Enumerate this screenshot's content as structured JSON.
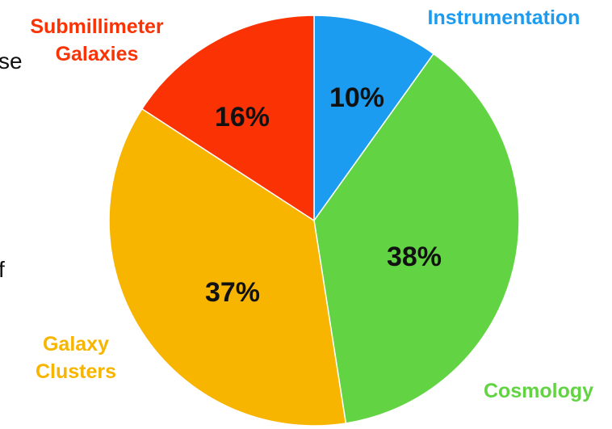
{
  "chart_data": {
    "type": "pie",
    "start_angle_deg": 0,
    "direction": "clockwise",
    "slices": [
      {
        "name": "Instrumentation",
        "label_lines": [
          "Instrumentation"
        ],
        "value": 10,
        "value_label": "10%",
        "color": "#1b9cf0"
      },
      {
        "name": "Cosmology",
        "label_lines": [
          "Cosmology"
        ],
        "value": 38,
        "value_label": "38%",
        "color": "#62d443"
      },
      {
        "name": "Galaxy Clusters",
        "label_lines": [
          "Galaxy",
          "Clusters"
        ],
        "value": 37,
        "value_label": "37%",
        "color": "#f7b500"
      },
      {
        "name": "Submillimeter Galaxies",
        "label_lines": [
          "Submillimeter",
          "Galaxies"
        ],
        "value": 16,
        "value_label": "16%",
        "color": "#fb3204"
      }
    ]
  },
  "page": {
    "clipped_text": [
      "se",
      "f"
    ]
  }
}
